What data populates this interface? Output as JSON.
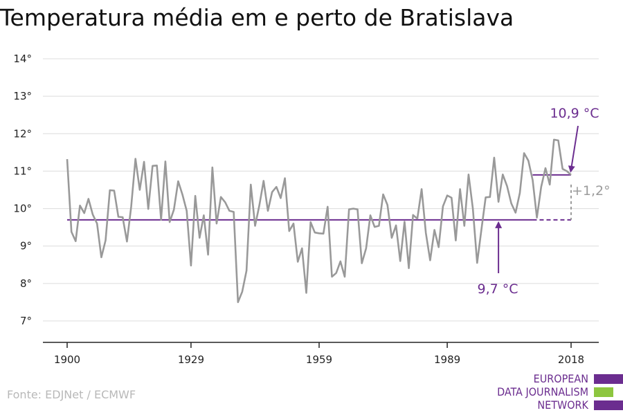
{
  "title": "Temperatura média em e perto de Bratislava",
  "source": "Fonte: EDJNet / ECMWF",
  "logo": {
    "lines": [
      "EUROPEAN",
      "DATA JOURNALISM",
      "NETWORK"
    ],
    "colors": [
      "#6b2d8f",
      "#8dc63f",
      "#6b2d8f"
    ]
  },
  "chart_data": {
    "type": "line",
    "title": "Temperatura média em e perto de Bratislava",
    "xlabel": "",
    "ylabel": "",
    "xlim": [
      1900,
      2018
    ],
    "ylim": [
      7,
      14
    ],
    "x_ticks": [
      1900,
      1929,
      1959,
      1989,
      2018
    ],
    "y_ticks": [
      7,
      8,
      9,
      10,
      11,
      12,
      13,
      14
    ],
    "y_tick_labels": [
      "7°",
      "8°",
      "9°",
      "10°",
      "11°",
      "12°",
      "13°",
      "14°"
    ],
    "grid": true,
    "line_color": "#999999",
    "accent_color": "#6b2d8f",
    "series": [
      {
        "x": [
          1900,
          1901,
          1902,
          1903,
          1904,
          1905,
          1906,
          1907,
          1908,
          1909,
          1910,
          1911,
          1912,
          1913,
          1914,
          1915,
          1916,
          1917,
          1918,
          1919,
          1920,
          1921,
          1922,
          1923,
          1924,
          1925,
          1926,
          1927,
          1928,
          1929,
          1930,
          1931,
          1932,
          1933,
          1934,
          1935,
          1936,
          1937,
          1938,
          1939,
          1940,
          1941,
          1942,
          1943,
          1944,
          1945,
          1946,
          1947,
          1948,
          1949,
          1950,
          1951,
          1952,
          1953,
          1954,
          1955,
          1956,
          1957,
          1958,
          1959,
          1960,
          1961,
          1962,
          1963,
          1964,
          1965,
          1966,
          1967,
          1968,
          1969,
          1970,
          1971,
          1972,
          1973,
          1974,
          1975,
          1976,
          1977,
          1978,
          1979,
          1980,
          1981,
          1982,
          1983,
          1984,
          1985,
          1986,
          1987,
          1988,
          1989,
          1990,
          1991,
          1992,
          1993,
          1994,
          1995,
          1996,
          1997,
          1998,
          1999,
          2000,
          2001,
          2002,
          2003,
          2004,
          2005,
          2006,
          2007,
          2008,
          2009,
          2010,
          2011,
          2012,
          2013,
          2014,
          2015,
          2016,
          2017,
          2018
        ],
        "values": [
          11.32,
          9.38,
          9.13,
          10.08,
          9.88,
          10.26,
          9.84,
          9.6,
          8.7,
          9.15,
          10.49,
          10.48,
          9.78,
          9.77,
          9.12,
          10.05,
          11.33,
          10.5,
          11.25,
          9.99,
          11.14,
          11.15,
          9.7,
          11.26,
          9.64,
          9.97,
          10.73,
          10.37,
          9.94,
          8.48,
          10.34,
          9.22,
          9.82,
          8.77,
          11.1,
          9.6,
          10.31,
          10.17,
          9.94,
          9.91,
          7.5,
          7.78,
          8.34,
          10.64,
          9.54,
          10.08,
          10.74,
          9.94,
          10.44,
          10.58,
          10.28,
          10.81,
          9.4,
          9.6,
          8.58,
          8.94,
          7.75,
          9.64,
          9.36,
          9.34,
          9.33,
          10.05,
          8.18,
          8.28,
          8.59,
          8.18,
          9.98,
          10.0,
          9.98,
          8.54,
          8.94,
          9.82,
          9.51,
          9.54,
          10.38,
          10.1,
          9.22,
          9.55,
          8.6,
          9.65,
          8.41,
          9.83,
          9.73,
          10.52,
          9.35,
          8.62,
          9.43,
          8.97,
          10.06,
          10.35,
          10.29,
          9.15,
          10.52,
          9.54,
          10.91,
          10.0,
          8.55,
          9.43,
          10.3,
          10.31,
          11.36,
          10.18,
          10.91,
          10.6,
          10.14,
          9.89,
          10.42,
          11.48,
          11.28,
          10.76,
          9.76,
          10.58,
          11.08,
          10.64,
          11.84,
          11.82,
          11.06,
          11.0,
          10.9
        ]
      }
    ],
    "baseline": {
      "value": 9.7,
      "from": 1900,
      "to": 2018,
      "label": "9,7 °C"
    },
    "recent": {
      "value": 10.9,
      "from": 2009,
      "to": 2018,
      "label": "10,9 °C"
    },
    "difference_label": "+1,2°",
    "annotation_color": "#6b2d8f",
    "difference_color": "#9b9b9b"
  }
}
